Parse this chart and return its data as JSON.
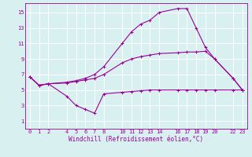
{
  "bg_color": "#d8f0f0",
  "grid_color": "#ffffff",
  "line_color": "#990099",
  "xlabel": "Windchill (Refroidissement éolien,°C)",
  "xlim": [
    -0.5,
    23.5
  ],
  "ylim": [
    0,
    16.2
  ],
  "xticks": [
    0,
    1,
    2,
    4,
    5,
    6,
    7,
    8,
    10,
    11,
    12,
    13,
    14,
    16,
    17,
    18,
    19,
    20,
    22,
    23
  ],
  "yticks": [
    1,
    3,
    5,
    7,
    9,
    11,
    13,
    15
  ],
  "line1_x": [
    0,
    1,
    2,
    4,
    5,
    6,
    7,
    8,
    10,
    11,
    12,
    13,
    14,
    16,
    17,
    18,
    19,
    20,
    22,
    23
  ],
  "line1_y": [
    6.7,
    5.6,
    5.8,
    6.0,
    6.2,
    6.5,
    7.0,
    8.0,
    11.0,
    12.5,
    13.5,
    14.0,
    15.0,
    15.5,
    15.5,
    13.0,
    10.5,
    9.0,
    6.5,
    5.0
  ],
  "line2_x": [
    0,
    1,
    2,
    4,
    5,
    6,
    7,
    8,
    10,
    11,
    12,
    13,
    14,
    16,
    17,
    18,
    19,
    20,
    22,
    23
  ],
  "line2_y": [
    6.7,
    5.6,
    5.8,
    5.9,
    6.1,
    6.3,
    6.5,
    7.0,
    8.5,
    9.0,
    9.3,
    9.5,
    9.7,
    9.8,
    9.9,
    9.9,
    10.0,
    9.0,
    6.5,
    5.0
  ],
  "line3_x": [
    0,
    1,
    2,
    4,
    5,
    6,
    7,
    8,
    10,
    11,
    12,
    13,
    14,
    16,
    17,
    18,
    19,
    20,
    22,
    23
  ],
  "line3_y": [
    6.7,
    5.6,
    5.8,
    4.2,
    3.0,
    2.5,
    2.0,
    4.5,
    4.7,
    4.8,
    4.9,
    5.0,
    5.0,
    5.0,
    5.0,
    5.0,
    5.0,
    5.0,
    5.0,
    5.0
  ],
  "tick_fontsize": 5,
  "xlabel_fontsize": 5.5,
  "marker_size": 3,
  "linewidth": 0.8
}
